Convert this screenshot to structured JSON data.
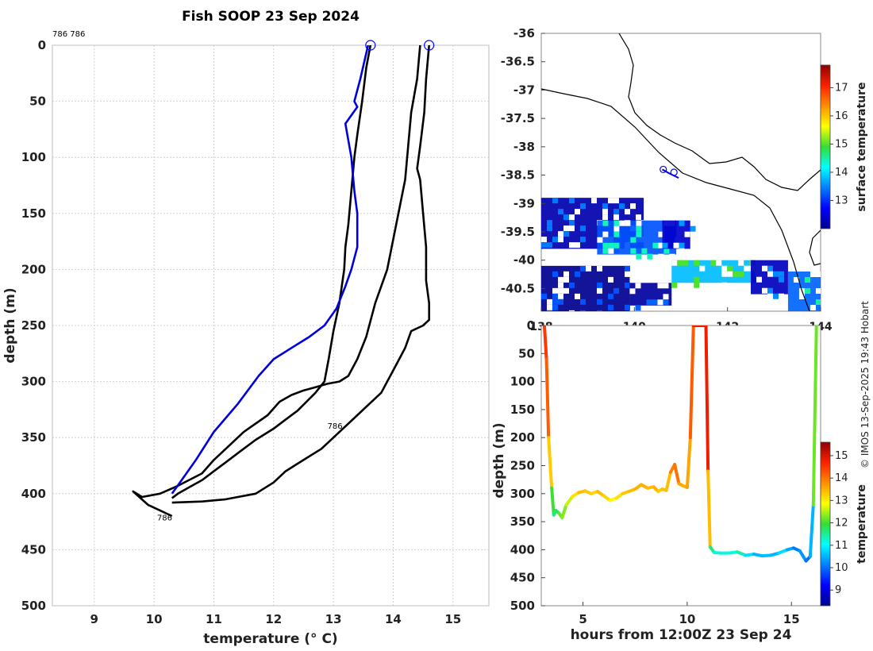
{
  "title": "Fish SOOP 23 Sep 2024",
  "top_left_tag": "786 786",
  "credit": "© IMOS 13-Sep-2025 19:43 Hobart",
  "colors": {
    "profile_line": "#000000",
    "highlight_line": "#0000dd",
    "marker": "#0000ff",
    "sst_cold": "#00008f",
    "sst_warm": "#8f0000"
  },
  "chart_data": [
    {
      "name": "profile",
      "type": "line",
      "xlabel": "temperature (° C)",
      "ylabel": "depth (m)",
      "xlim": [
        8.3,
        15.6
      ],
      "ylim": [
        500,
        0
      ],
      "xticks": [
        9,
        10,
        11,
        12,
        13,
        14,
        15
      ],
      "yticks": [
        0,
        50,
        100,
        150,
        200,
        250,
        300,
        350,
        400,
        450,
        500
      ],
      "series": [
        {
          "name": "profile 1",
          "color": "#000000",
          "x": [
            13.62,
            13.55,
            13.48,
            13.4,
            13.35,
            13.3,
            13.25,
            13.2,
            13.18,
            13.1,
            13.0,
            12.92,
            12.85,
            12.7,
            12.55,
            12.4,
            12.2,
            12.0,
            11.7,
            11.45,
            11.2,
            11.0,
            10.8,
            10.6,
            10.4,
            10.3
          ],
          "y": [
            0,
            20,
            50,
            80,
            100,
            130,
            160,
            180,
            200,
            230,
            255,
            280,
            300,
            310,
            318,
            326,
            334,
            342,
            352,
            362,
            372,
            380,
            388,
            394,
            400,
            404
          ]
        },
        {
          "name": "profile 2",
          "color": "#000000",
          "x": [
            14.45,
            14.4,
            14.3,
            14.25,
            14.2,
            14.05,
            13.9,
            13.7,
            13.55,
            13.4,
            13.25,
            13.1,
            12.9,
            12.7,
            12.5,
            12.3,
            12.1,
            11.9,
            11.5,
            11.2,
            11.0,
            10.8,
            10.4,
            10.1,
            9.8,
            9.65,
            9.9,
            10.3
          ],
          "y": [
            0,
            30,
            60,
            90,
            120,
            160,
            200,
            230,
            260,
            280,
            295,
            300,
            302,
            305,
            308,
            312,
            318,
            330,
            345,
            360,
            370,
            382,
            393,
            400,
            403,
            398,
            410,
            420
          ]
        },
        {
          "name": "profile 3",
          "color": "#000000",
          "x": [
            14.6,
            14.55,
            14.52,
            14.45,
            14.4,
            14.45,
            14.5,
            14.55,
            14.55,
            14.6,
            14.6,
            14.5,
            14.3,
            14.2,
            14.1,
            14.0,
            13.9,
            13.8,
            13.6,
            13.4,
            13.2,
            13.0,
            12.8,
            12.5,
            12.2,
            12.0,
            11.7,
            11.2,
            10.8,
            10.3
          ],
          "y": [
            0,
            30,
            60,
            90,
            110,
            120,
            150,
            180,
            210,
            230,
            245,
            250,
            255,
            270,
            280,
            290,
            300,
            310,
            320,
            330,
            340,
            350,
            360,
            370,
            380,
            390,
            400,
            405,
            407,
            408
          ]
        },
        {
          "name": "profile 4",
          "color": "#0000dd",
          "x": [
            13.58,
            13.45,
            13.35,
            13.4,
            13.2,
            13.3,
            13.35,
            13.4,
            13.4,
            13.3,
            13.2,
            13.05,
            12.85,
            12.6,
            12.3,
            12.0,
            11.75,
            11.4,
            11.0,
            10.7,
            10.5,
            10.3
          ],
          "y": [
            0,
            30,
            50,
            55,
            70,
            100,
            130,
            150,
            180,
            200,
            215,
            235,
            250,
            260,
            270,
            280,
            295,
            320,
            345,
            370,
            385,
            400
          ]
        }
      ],
      "markers": [
        {
          "x": 13.62,
          "y": 0
        },
        {
          "x": 14.6,
          "y": 0
        }
      ],
      "annotations": [
        {
          "text": "786",
          "x": 12.9,
          "y": 342
        },
        {
          "text": "786",
          "x": 10.05,
          "y": 424
        }
      ]
    },
    {
      "name": "map",
      "type": "heatmap",
      "ylabel": "",
      "xlim": [
        138,
        144
      ],
      "ylim": [
        -40.9,
        -36
      ],
      "xticks": [
        138,
        140,
        142,
        144
      ],
      "xtick_labels": [
        "138",
        "140",
        "142",
        "144"
      ],
      "yticks": [
        -36,
        -36.5,
        -37,
        -37.5,
        -38,
        -38.5,
        -39,
        -39.5,
        -40,
        -40.5
      ],
      "colorbar": {
        "label": "surface temperature",
        "ticks": [
          13,
          14,
          15,
          16,
          17
        ],
        "range": [
          12,
          17.8
        ]
      },
      "track": {
        "lon": [
          140.6,
          140.75,
          140.95
        ],
        "lat": [
          -38.4,
          -38.47,
          -38.55
        ]
      },
      "markers": [
        {
          "lon": 140.62,
          "lat": -38.4
        },
        {
          "lon": 140.85,
          "lat": -38.45
        }
      ],
      "sst_patches": [
        {
          "lon": [
            138.0,
            140.2
          ],
          "lat": [
            -39.8,
            -38.9
          ],
          "value": 12.2
        },
        {
          "lon": [
            139.2,
            140.9
          ],
          "lat": [
            -39.9,
            -39.3
          ],
          "value": 13.2
        },
        {
          "lon": [
            140.6,
            141.2
          ],
          "lat": [
            -39.8,
            -39.3
          ],
          "value": 12.4
        },
        {
          "lon": [
            138.0,
            139.9
          ],
          "lat": [
            -40.9,
            -40.1
          ],
          "value": 12.0
        },
        {
          "lon": [
            139.9,
            140.8
          ],
          "lat": [
            -40.8,
            -40.4
          ],
          "value": 12.1
        },
        {
          "lon": [
            140.8,
            142.6
          ],
          "lat": [
            -40.4,
            -40.0
          ],
          "value": 13.8
        },
        {
          "lon": [
            142.5,
            143.3
          ],
          "lat": [
            -40.6,
            -40.0
          ],
          "value": 12.3
        },
        {
          "lon": [
            143.3,
            144.0
          ],
          "lat": [
            -40.9,
            -40.2
          ],
          "value": 13.3
        }
      ]
    },
    {
      "name": "time_depth",
      "type": "scatter",
      "xlabel": "hours from 12:00Z 23 Sep 24",
      "ylabel": "depth (m)",
      "xlim": [
        3.0,
        16.4
      ],
      "ylim": [
        500,
        0
      ],
      "xticks": [
        5,
        10,
        15
      ],
      "yticks": [
        0,
        50,
        100,
        150,
        200,
        250,
        300,
        350,
        400,
        450,
        500
      ],
      "colorbar": {
        "label": "temperature",
        "ticks": [
          9,
          10,
          11,
          12,
          13,
          14,
          15
        ],
        "range": [
          8.3,
          15.6
        ]
      },
      "x": [
        3.15,
        3.25,
        3.35,
        3.5,
        3.6,
        3.7,
        3.85,
        4.0,
        4.2,
        4.5,
        4.8,
        5.1,
        5.4,
        5.7,
        6.0,
        6.3,
        6.6,
        6.9,
        7.2,
        7.5,
        7.8,
        8.1,
        8.4,
        8.6,
        8.8,
        9.0,
        9.2,
        9.4,
        9.6,
        9.8,
        10.0,
        10.15,
        10.3,
        10.45,
        10.6,
        10.75,
        10.9,
        11.0,
        11.1,
        11.3,
        11.6,
        12.0,
        12.4,
        12.8,
        13.2,
        13.6,
        14.0,
        14.4,
        14.8,
        15.1,
        15.4,
        15.7,
        15.9,
        16.05,
        16.2
      ],
      "y": [
        0,
        60,
        200,
        290,
        338,
        330,
        335,
        343,
        320,
        305,
        298,
        295,
        300,
        296,
        304,
        312,
        308,
        300,
        296,
        292,
        284,
        290,
        288,
        296,
        292,
        294,
        262,
        248,
        282,
        286,
        289,
        200,
        0,
        0,
        0,
        0,
        0,
        260,
        395,
        405,
        406,
        406,
        404,
        410,
        408,
        411,
        410,
        406,
        400,
        397,
        402,
        420,
        412,
        320,
        0
      ],
      "temp": [
        14.5,
        14.2,
        13.3,
        12.0,
        11.6,
        11.7,
        12.2,
        12.3,
        12.6,
        13.1,
        13.4,
        13.3,
        13.2,
        13.4,
        13.2,
        12.9,
        13.1,
        13.3,
        13.4,
        13.5,
        13.5,
        13.4,
        13.5,
        13.3,
        13.4,
        13.4,
        13.9,
        14.0,
        13.6,
        13.5,
        13.6,
        14.2,
        14.8,
        14.8,
        14.8,
        14.8,
        14.8,
        13.4,
        11.6,
        11.2,
        11.2,
        11.2,
        11.4,
        10.8,
        10.5,
        10.6,
        10.5,
        10.8,
        10.4,
        10.1,
        10.3,
        10.0,
        10.5,
        12.2,
        14.9
      ]
    }
  ]
}
